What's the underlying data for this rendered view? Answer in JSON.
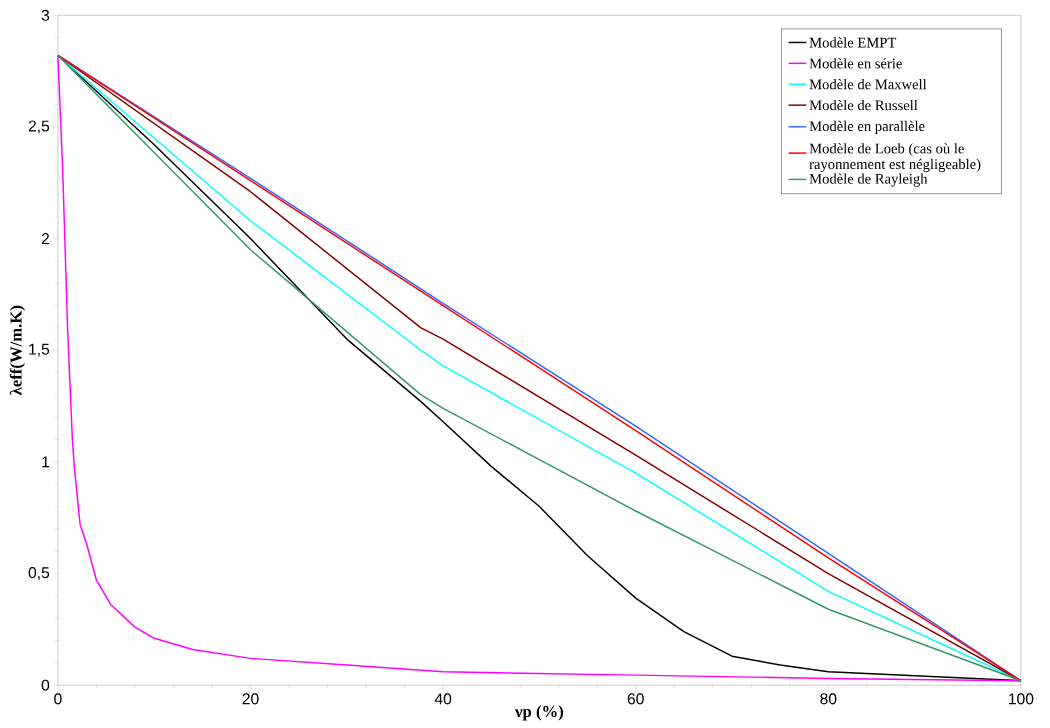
{
  "chart_data": {
    "type": "line",
    "xlabel": "νp (%)",
    "ylabel": "λeff(W/m.K)",
    "xlim": [
      0,
      100
    ],
    "ylim": [
      0,
      3
    ],
    "xticks": [
      0,
      20,
      40,
      60,
      80,
      100
    ],
    "yticks": [
      0,
      {
        "value": 0.5,
        "label": "0,5"
      },
      1,
      {
        "value": 1.5,
        "label": "1,5"
      },
      2,
      {
        "value": 2.5,
        "label": "2,5"
      },
      3
    ],
    "legend": "top right",
    "series": [
      {
        "name": "Modèle EMPT",
        "color": "#000000",
        "x": [
          0,
          10,
          20,
          30,
          37.7,
          40,
          45,
          50,
          55,
          60,
          65,
          70,
          75,
          80,
          90,
          95,
          100
        ],
        "values": [
          2.82,
          2.42,
          2.0,
          1.55,
          1.27,
          1.18,
          0.98,
          0.8,
          0.58,
          0.39,
          0.24,
          0.13,
          0.09,
          0.06,
          0.04,
          0.03,
          0.02
        ]
      },
      {
        "name": "Modèle en série",
        "color": "#ff00ff",
        "x": [
          0,
          0.5,
          1,
          1.5,
          1.7,
          2.3,
          3,
          4,
          5.5,
          8,
          10,
          14,
          20,
          30,
          40,
          60,
          80,
          100
        ],
        "values": [
          2.82,
          2.3,
          1.6,
          1.1,
          0.98,
          0.72,
          0.63,
          0.47,
          0.36,
          0.26,
          0.21,
          0.16,
          0.12,
          0.09,
          0.06,
          0.045,
          0.03,
          0.02
        ]
      },
      {
        "name": "Modèle de Maxwell",
        "color": "#00ffff",
        "x": [
          0,
          20,
          37.7,
          40,
          60,
          80,
          100
        ],
        "values": [
          2.82,
          2.08,
          1.5,
          1.43,
          0.95,
          0.42,
          0.02
        ]
      },
      {
        "name": "Modèle de Russell",
        "color": "#800000",
        "x": [
          0,
          20,
          37.7,
          40,
          60,
          80,
          100
        ],
        "values": [
          2.82,
          2.21,
          1.6,
          1.55,
          1.03,
          0.5,
          0.02
        ]
      },
      {
        "name": "Modèle en parallèle",
        "color": "#3366ff",
        "x": [
          0,
          20,
          40,
          60,
          80,
          100
        ],
        "values": [
          2.82,
          2.27,
          1.71,
          1.16,
          0.59,
          0.02
        ]
      },
      {
        "name": "Modèle de Loeb (cas où le rayonnement est négligeable)",
        "color": "#ff0000",
        "x": [
          0,
          20,
          40,
          60,
          80,
          100
        ],
        "values": [
          2.82,
          2.26,
          1.7,
          1.14,
          0.57,
          0.02
        ]
      },
      {
        "name": "Modèle de Rayleigh",
        "color": "#339966",
        "x": [
          0,
          20,
          37.7,
          40,
          60,
          80,
          100
        ],
        "values": [
          2.82,
          1.95,
          1.3,
          1.24,
          0.78,
          0.34,
          0.02
        ]
      }
    ]
  }
}
